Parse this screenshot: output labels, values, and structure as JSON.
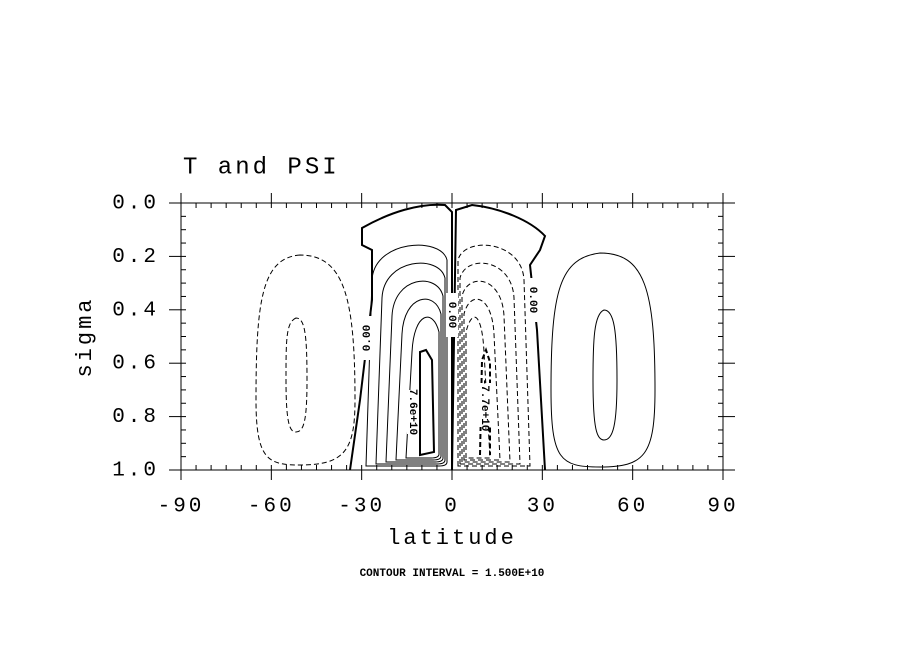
{
  "chart_data": {
    "type": "contour",
    "title": "T and PSI",
    "xlabel": "latitude",
    "ylabel": "sigma",
    "xlim": [
      -90,
      90
    ],
    "xticks": [
      -90,
      -60,
      -30,
      0,
      30,
      60,
      90
    ],
    "ylim": [
      0,
      1
    ],
    "y_inverted": true,
    "yticks": [
      {
        "value": 0,
        "label": "0.0"
      },
      {
        "value": 0.2,
        "label": "0.2"
      },
      {
        "value": 0.4,
        "label": "0.4"
      },
      {
        "value": 0.6,
        "label": "0.6"
      },
      {
        "value": 0.8,
        "label": "0.8"
      },
      {
        "value": 1,
        "label": "1.0"
      }
    ],
    "contour_labels": [
      "0.00",
      "0.00",
      "0.00",
      "7.6e+10",
      "-7.7e+10"
    ],
    "footnote": "CONTOUR INTERVAL = 1.500E+10"
  }
}
